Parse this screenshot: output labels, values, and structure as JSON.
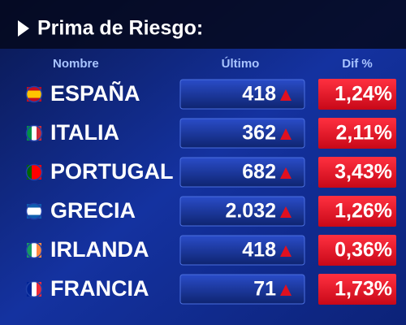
{
  "header": {
    "title": "Prima de Riesgo:"
  },
  "table": {
    "columns": [
      "Nombre",
      "Último",
      "Dif %"
    ],
    "rows": [
      [
        "ESPAÑA",
        "418",
        "1,24%"
      ],
      [
        "ITALIA",
        "362",
        "2,11%"
      ],
      [
        "PORTUGAL",
        "682",
        "3,43%"
      ],
      [
        "GRECIA",
        "2.032",
        "1,26%"
      ],
      [
        "IRLANDA",
        "418",
        "0,36%"
      ],
      [
        "FRANCIA",
        "71",
        "1,73%"
      ]
    ]
  }
}
